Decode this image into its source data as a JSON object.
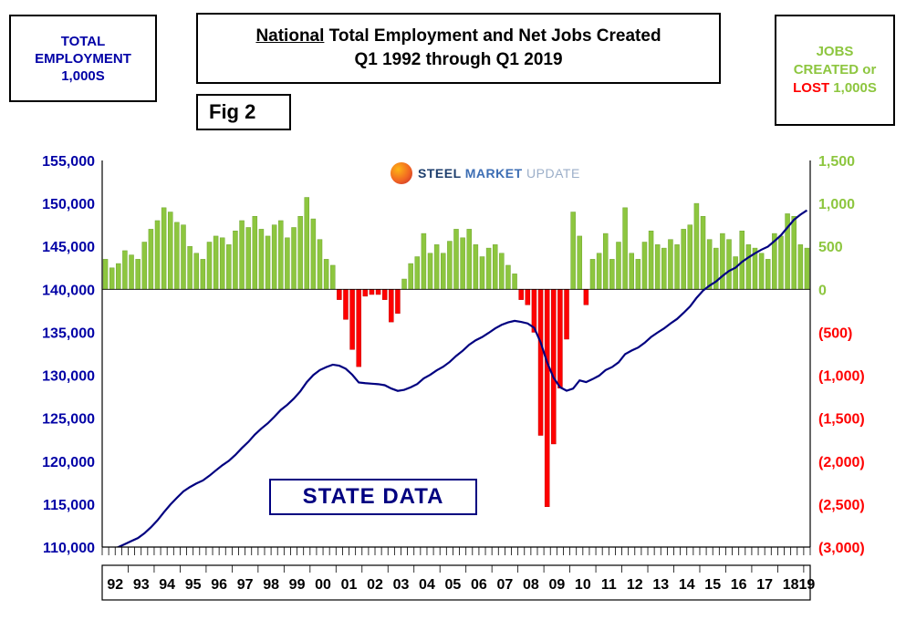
{
  "header": {
    "left_box": {
      "line1": "TOTAL",
      "line2": "EMPLOYMENT",
      "line3": "1,000S"
    },
    "title": {
      "word_underlined": "National",
      "rest": " Total Employment and Net Jobs Created",
      "line2": "Q1 1992 through Q1 2019"
    },
    "fig_label": "Fig 2",
    "right_box": {
      "line1": "JOBS",
      "line2": "CREATED or",
      "lost_word": "LOST",
      "after_lost": " 1,000S"
    }
  },
  "logo": {
    "steel": "STEEL",
    "market": "MARKET",
    "update": "UPDATE"
  },
  "overlay_label": "STATE DATA",
  "colors": {
    "navy": "#000080",
    "axis_blue": "#0000A6",
    "green": "#8DC63F",
    "red": "#FF0000",
    "black": "#000000"
  },
  "chart_data": {
    "type": "combo",
    "title": "National Total Employment and Net Jobs Created",
    "subtitle": "Q1 1992 through Q1 2019",
    "x_unit": "quarter",
    "x_start": "1992-Q1",
    "x_end": "2019-Q1",
    "grid": false,
    "legend": "none",
    "years": [
      "92",
      "93",
      "94",
      "95",
      "96",
      "97",
      "98",
      "99",
      "00",
      "01",
      "02",
      "03",
      "04",
      "05",
      "06",
      "07",
      "08",
      "09",
      "10",
      "11",
      "12",
      "13",
      "14",
      "15",
      "16",
      "17",
      "18",
      "19"
    ],
    "left_axis": {
      "title": "Total Employment 1,000s",
      "min": 110000,
      "max": 155000,
      "step": 5000,
      "tick_labels": [
        "155,000",
        "150,000",
        "145,000",
        "140,000",
        "135,000",
        "130,000",
        "125,000",
        "120,000",
        "115,000",
        "110,000"
      ]
    },
    "right_axis": {
      "title": "Jobs Created or Lost 1,000s",
      "min": -3000,
      "max": 1500,
      "step": 500,
      "tick_labels": [
        "1,500",
        "1,000",
        "500",
        "0",
        "(500)",
        "(1,000)",
        "(1,500)",
        "(2,000)",
        "(2,500)",
        "(3,000)"
      ]
    },
    "series": [
      {
        "name": "Net Jobs Created or Lost (1,000s)",
        "type": "bar",
        "axis": "right",
        "color_positive": "#8DC63F",
        "color_negative": "#FF0000",
        "values": [
          350,
          250,
          300,
          450,
          400,
          350,
          550,
          700,
          800,
          950,
          900,
          780,
          750,
          500,
          420,
          350,
          550,
          620,
          600,
          520,
          680,
          800,
          720,
          850,
          700,
          620,
          750,
          800,
          600,
          720,
          850,
          1070,
          820,
          580,
          350,
          280,
          -120,
          -350,
          -700,
          -900,
          -80,
          -60,
          -60,
          -120,
          -380,
          -280,
          120,
          300,
          380,
          650,
          420,
          520,
          420,
          560,
          700,
          600,
          700,
          520,
          380,
          480,
          520,
          420,
          280,
          180,
          -120,
          -180,
          -500,
          -1700,
          -2530,
          -1800,
          -1150,
          -580,
          900,
          620,
          -180,
          350,
          420,
          650,
          350,
          550,
          950,
          420,
          350,
          550,
          680,
          520,
          480,
          580,
          520,
          700,
          750,
          1000,
          850,
          580,
          480,
          650,
          580,
          380,
          680,
          520,
          480,
          420,
          350,
          650,
          620,
          880,
          850,
          520,
          480
        ]
      },
      {
        "name": "Total Employment (1,000s)",
        "type": "line",
        "axis": "left",
        "color": "#000080",
        "values": [
          109400,
          109700,
          110000,
          110350,
          110700,
          111050,
          111600,
          112300,
          113100,
          114050,
          114950,
          115730,
          116480,
          116980,
          117400,
          117750,
          118300,
          118920,
          119520,
          120040,
          120720,
          121520,
          122240,
          123090,
          123790,
          124410,
          125160,
          125960,
          126560,
          127280,
          128130,
          129200,
          130020,
          130600,
          130950,
          131230,
          131110,
          130760,
          130060,
          129160,
          129080,
          129020,
          128960,
          128840,
          128460,
          128180,
          128300,
          128600,
          128980,
          129630,
          130050,
          130570,
          130990,
          131550,
          132250,
          132850,
          133550,
          134070,
          134450,
          134930,
          135450,
          135870,
          136150,
          136330,
          136210,
          136030,
          135530,
          133830,
          131500,
          129700,
          128600,
          128200,
          128450,
          129400,
          129200,
          129550,
          129950,
          130600,
          130950,
          131500,
          132450,
          132870,
          133220,
          133770,
          134450,
          134970,
          135450,
          136030,
          136550,
          137250,
          138000,
          139000,
          139850,
          140430,
          140910,
          141560,
          142140,
          142520,
          143200,
          143720,
          144200,
          144620,
          144970,
          145620,
          146300,
          147200,
          148100,
          148700,
          149200
        ]
      }
    ]
  }
}
